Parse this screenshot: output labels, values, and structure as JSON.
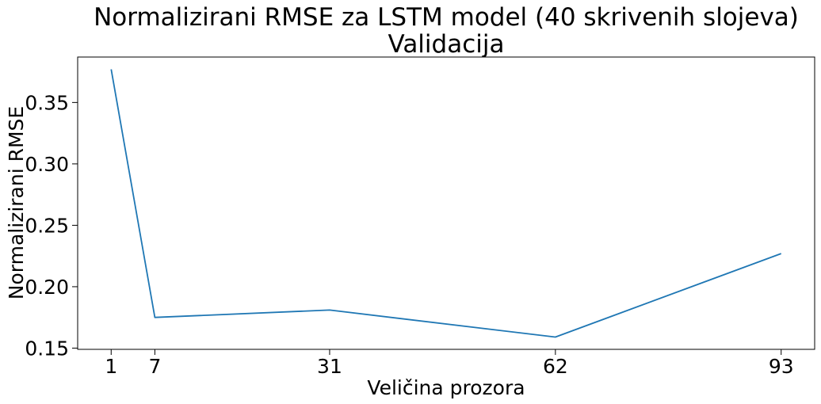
{
  "chart_data": {
    "type": "line",
    "title": "Normalizirani RMSE za LSTM model (40 skrivenih slojeva)",
    "subtitle": "Validacija",
    "xlabel": "Veličina prozora",
    "ylabel": "Normalizirani RMSE",
    "x": [
      1,
      7,
      31,
      62,
      93
    ],
    "series": [
      {
        "values": [
          0.377,
          0.175,
          0.181,
          0.159,
          0.227
        ],
        "color": "#1f77b4"
      }
    ],
    "xticks": [
      1,
      7,
      31,
      62,
      93
    ],
    "xtick_labels": [
      "1",
      "7",
      "31",
      "62",
      "93"
    ],
    "yticks": [
      0.15,
      0.2,
      0.25,
      0.3,
      0.35
    ],
    "ytick_labels": [
      "0.15",
      "0.20",
      "0.25",
      "0.30",
      "0.35"
    ],
    "xlim": [
      -3.6,
      97.6
    ],
    "ylim": [
      0.149,
      0.387
    ],
    "grid": false,
    "legend": "none"
  }
}
